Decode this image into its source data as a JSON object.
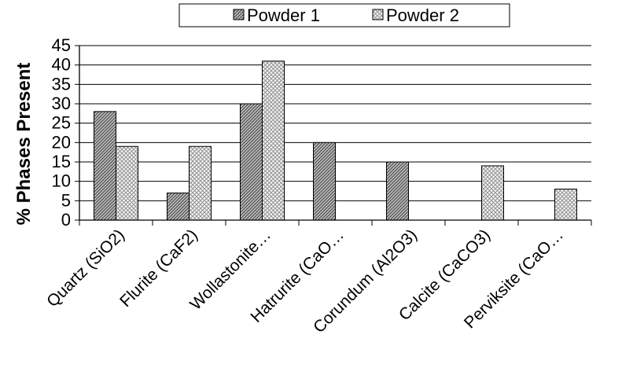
{
  "chart_data": {
    "type": "bar",
    "title": "",
    "xlabel": "",
    "ylabel": "% Phases Present",
    "ylim": [
      0,
      45
    ],
    "yticks": [
      0,
      5,
      10,
      15,
      20,
      25,
      30,
      35,
      40,
      45
    ],
    "grid": "horizontal",
    "legend": "top",
    "categories": [
      "Quartz (SiO2)",
      "Flurite (CaF2)",
      "Wollastonite…",
      "Hatrurite (CaO…",
      "Corundum (Al2O3)",
      "Calcite (CaCO3)",
      "Perviksite (CaO…"
    ],
    "series": [
      {
        "name": "Powder 1",
        "pattern": "diagonal-dark",
        "values": [
          28,
          7,
          30,
          20,
          15,
          0,
          0
        ]
      },
      {
        "name": "Powder 2",
        "pattern": "crosshatch-light",
        "values": [
          19,
          19,
          41,
          0,
          0,
          14,
          8
        ]
      }
    ]
  }
}
